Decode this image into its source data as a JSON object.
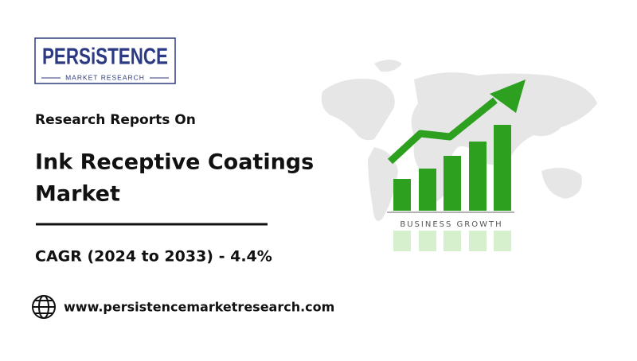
{
  "logo": {
    "name": "PERSiSTENCE",
    "tagline": "MARKET RESEARCH"
  },
  "intro": "Research Reports On",
  "title": {
    "line1": "Ink Receptive Coatings",
    "line2": "Market"
  },
  "cagr": "CAGR (2024 to 2033) - 4.4%",
  "website": "www.persistencemarketresearch.com",
  "illustration": {
    "caption": "BUSINESS GROWTH"
  }
}
